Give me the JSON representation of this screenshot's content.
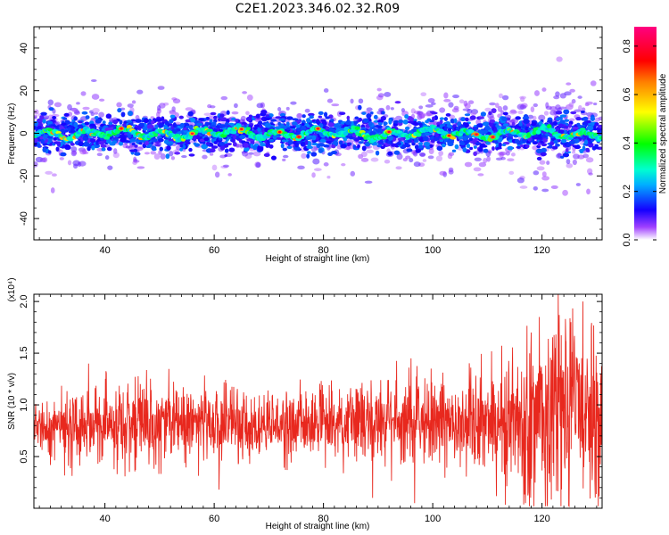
{
  "title": "C2E1.2023.346.02.32.R09",
  "chart_data": [
    {
      "type": "heatmap",
      "xlabel": "Height of straight line (km)",
      "ylabel": "Frequency (Hz)",
      "xlim": [
        27,
        131
      ],
      "ylim": [
        -50,
        50
      ],
      "x_ticks": [
        40,
        60,
        80,
        100,
        120
      ],
      "y_ticks": [
        -40,
        -20,
        0,
        20,
        40
      ],
      "colorbar": {
        "label": "Normalized spectral amplitude",
        "range": [
          0.0,
          0.88
        ],
        "ticks": [
          0.0,
          0.2,
          0.4,
          0.6,
          0.8
        ],
        "colormap": [
          "#ffffff",
          "#8a00ff",
          "#0000ff",
          "#00e5ff",
          "#00ff00",
          "#ffff00",
          "#ff8000",
          "#ff0000",
          "#ff00ff"
        ]
      },
      "band": {
        "center_hz": 0,
        "half_width_hz": 7,
        "peak_amplitude": 0.85,
        "typical_core_amplitude": 0.3
      }
    },
    {
      "type": "line",
      "xlabel": "Height of straight line (km)",
      "ylabel": "SNR (10 * v/v)",
      "y_multiplier": "(x10⁴)",
      "xlim": [
        27,
        131
      ],
      "ylim": [
        0,
        2.07
      ],
      "x_ticks": [
        40,
        60,
        80,
        100,
        120
      ],
      "y_ticks": [
        0.5,
        1.0,
        1.5,
        2.0
      ],
      "color": "#e8281e",
      "x": [
        27,
        35,
        45,
        55,
        65,
        75,
        85,
        95,
        105,
        110,
        115,
        120,
        125,
        131
      ],
      "typical_low": [
        0.6,
        0.55,
        0.5,
        0.5,
        0.5,
        0.55,
        0.5,
        0.5,
        0.5,
        0.4,
        0.25,
        0.2,
        0.2,
        0.25
      ],
      "typical_high": [
        1.0,
        1.05,
        1.15,
        1.15,
        1.1,
        1.05,
        1.15,
        1.2,
        1.2,
        1.3,
        1.45,
        1.6,
        1.7,
        1.6
      ],
      "peaks": [
        {
          "x": 123.0,
          "y": 2.07
        },
        {
          "x": 119.5,
          "y": 1.85
        },
        {
          "x": 127.5,
          "y": 2.0
        },
        {
          "x": 129.0,
          "y": 1.75
        },
        {
          "x": 37.0,
          "y": 1.4
        },
        {
          "x": 96.0,
          "y": 1.45
        },
        {
          "x": 118.0,
          "y": 1.7
        }
      ],
      "troughs": [
        {
          "x": 60.9,
          "y": 0.18
        },
        {
          "x": 89.0,
          "y": 0.1
        },
        {
          "x": 96.7,
          "y": 0.05
        },
        {
          "x": 117.0,
          "y": 0.05
        },
        {
          "x": 121.0,
          "y": 0.05
        }
      ]
    }
  ]
}
